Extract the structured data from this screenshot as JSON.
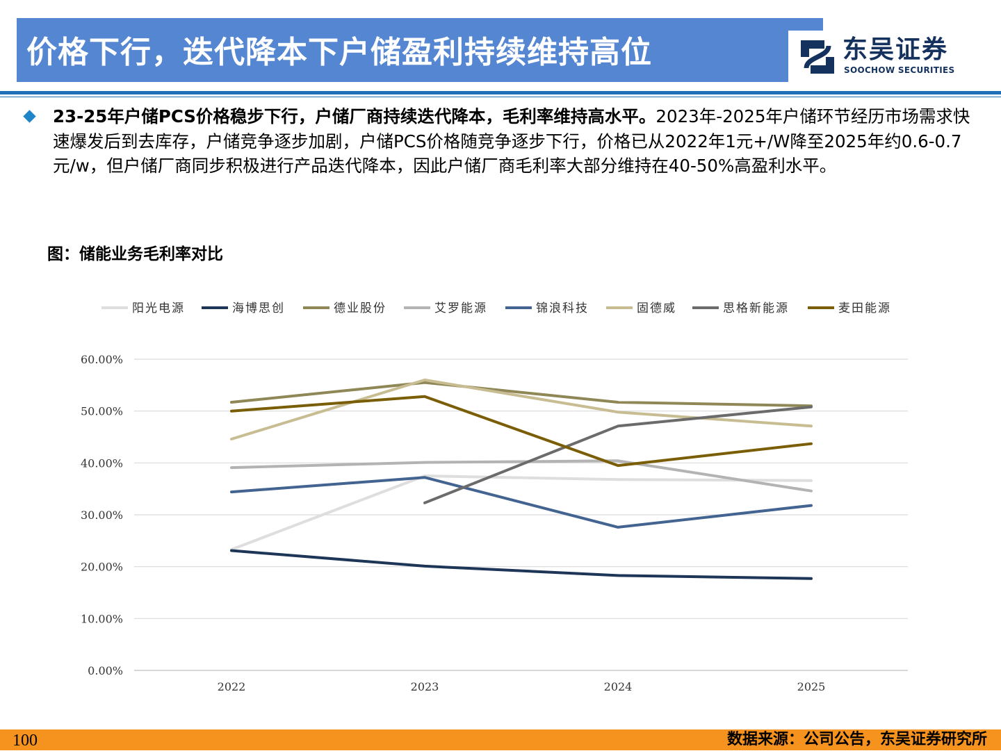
{
  "header": {
    "title": "价格下行，迭代降本下户储盈利持续维持高位",
    "logo_cn": "东吴证券",
    "logo_en": "SOOCHOW SECURITIES",
    "title_bg": "#5586d2",
    "rule_color": "#1f6fb6"
  },
  "body": {
    "lead_bold": "23-25年户储PCS价格稳步下行，户储厂商持续迭代降本，毛利率维持高水平。",
    "text": "2023年-2025年户储环节经历市场需求快速爆发后到去库存，户储竞争逐步加剧，户储PCS价格随竞争逐步下行，价格已从2022年1元+/W降至2025年约0.6-0.7元/w，但户储厂商同步积极进行产品迭代降本，因此户储厂商毛利率大部分维持在40-50%高盈利水平。",
    "bullet_icon": "diamond-bullet-icon"
  },
  "figure_title": "图：储能业务毛利率对比",
  "chart_data": {
    "type": "line",
    "x": [
      "2022",
      "2023",
      "2024",
      "2025"
    ],
    "ylim": [
      0,
      60
    ],
    "yticks": [
      0,
      10,
      20,
      30,
      40,
      50,
      60
    ],
    "ytick_labels": [
      "0.00%",
      "10.00%",
      "20.00%",
      "30.00%",
      "40.00%",
      "50.00%",
      "60.00%"
    ],
    "grid": true,
    "legend_position": "top",
    "series": [
      {
        "name": "阳光电源",
        "color": "#dedede",
        "values": [
          23.3,
          37.5,
          36.8,
          36.6
        ]
      },
      {
        "name": "海博思创",
        "color": "#1d3557",
        "values": [
          23.1,
          20.1,
          18.3,
          17.7
        ]
      },
      {
        "name": "德业股份",
        "color": "#8f8756",
        "values": [
          51.7,
          55.5,
          51.7,
          51.0
        ]
      },
      {
        "name": "艾罗能源",
        "color": "#b3b3b3",
        "values": [
          39.1,
          40.1,
          40.4,
          34.6
        ]
      },
      {
        "name": "锦浪科技",
        "color": "#436491",
        "values": [
          34.4,
          37.2,
          27.6,
          31.8
        ]
      },
      {
        "name": "固德威",
        "color": "#c8bd92",
        "values": [
          44.6,
          56.0,
          49.8,
          47.1
        ]
      },
      {
        "name": "思格新能源",
        "color": "#6b6b6b",
        "values": [
          null,
          32.3,
          47.1,
          50.8
        ]
      },
      {
        "name": "麦田能源",
        "color": "#7a5e05",
        "values": [
          50.0,
          52.8,
          39.5,
          43.7
        ]
      }
    ]
  },
  "footer": {
    "page_number": "100",
    "source": "数据来源：公司公告，东吴证券研究所",
    "bar_color": "#f6921e"
  }
}
